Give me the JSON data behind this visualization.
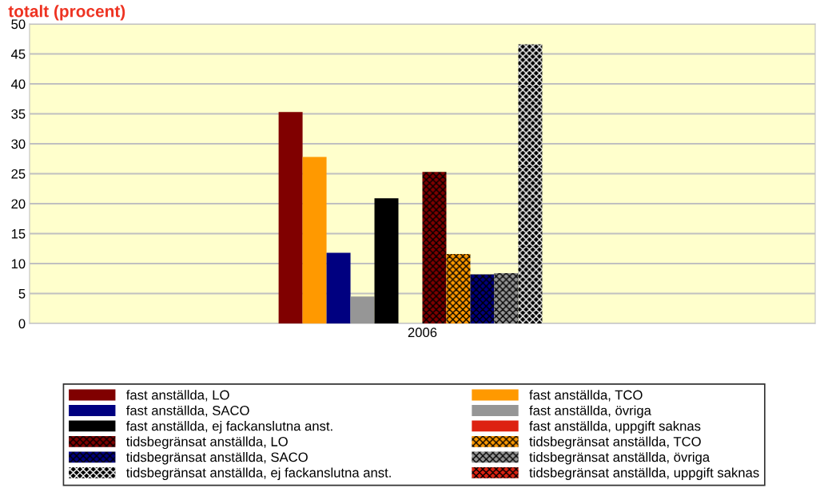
{
  "chart_data": {
    "type": "bar",
    "title": "totalt (procent)",
    "categories": [
      "2006"
    ],
    "ylim": [
      0,
      50
    ],
    "yticks": [
      0,
      5,
      10,
      15,
      20,
      25,
      30,
      35,
      40,
      45,
      50
    ],
    "grid": "y",
    "legend": "bottom",
    "series": [
      {
        "name": "fast anställda, LO",
        "color": "#800000",
        "values": [
          35.3
        ]
      },
      {
        "name": "fast anställda, TCO",
        "color": "#ff9900",
        "values": [
          27.8
        ]
      },
      {
        "name": "fast anställda, SACO",
        "color": "#000080",
        "values": [
          11.8
        ]
      },
      {
        "name": "fast anställda, övriga",
        "color": "#969696",
        "values": [
          4.5
        ]
      },
      {
        "name": "fast anställda, ej fackanslutna anst.",
        "color": "#000000",
        "values": [
          20.9
        ]
      },
      {
        "name": "fast anställda, uppgift saknas",
        "color": "#dd2211",
        "values": [
          0
        ]
      },
      {
        "name": "tidsbegränsat anställda, LO",
        "color": "#800000",
        "values": [
          25.3
        ]
      },
      {
        "name": "tidsbegränsat anställda, TCO",
        "color": "#ff9900",
        "values": [
          11.6
        ]
      },
      {
        "name": "tidsbegränsat anställda, SACO",
        "color": "#000080",
        "values": [
          8.2
        ]
      },
      {
        "name": "tidsbegränsat anställda, övriga",
        "color": "#969696",
        "values": [
          8.4
        ]
      },
      {
        "name": "tidsbegränsat anställda, ej fackanslutna anst.",
        "color": "#000000",
        "values": [
          46.6
        ]
      },
      {
        "name": "tidsbegränsat anställda, uppgift saknas",
        "color": "#dd2211",
        "values": [
          0
        ]
      }
    ]
  }
}
